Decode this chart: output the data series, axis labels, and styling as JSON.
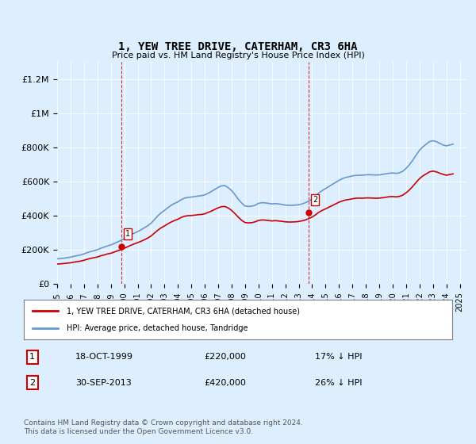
{
  "title": "1, YEW TREE DRIVE, CATERHAM, CR3 6HA",
  "subtitle": "Price paid vs. HM Land Registry's House Price Index (HPI)",
  "ylabel": "",
  "xlim_left": 1995.0,
  "xlim_right": 2025.5,
  "ylim_bottom": 0,
  "ylim_top": 1300000,
  "yticks": [
    0,
    200000,
    400000,
    600000,
    800000,
    1000000,
    1200000
  ],
  "ytick_labels": [
    "£0",
    "£200K",
    "£400K",
    "£600K",
    "£800K",
    "£1M",
    "£1.2M"
  ],
  "xticks": [
    1995,
    1996,
    1997,
    1998,
    1999,
    2000,
    2001,
    2002,
    2003,
    2004,
    2005,
    2006,
    2007,
    2008,
    2009,
    2010,
    2011,
    2012,
    2013,
    2014,
    2015,
    2016,
    2017,
    2018,
    2019,
    2020,
    2021,
    2022,
    2023,
    2024,
    2025
  ],
  "sale1_x": 1999.8,
  "sale1_y": 220000,
  "sale1_label": "1",
  "sale2_x": 2013.75,
  "sale2_y": 420000,
  "sale2_label": "2",
  "vline1_x": 1999.8,
  "vline2_x": 2013.75,
  "line_color_red": "#cc0000",
  "line_color_blue": "#6699cc",
  "vline_color": "#cc0000",
  "background_color": "#ddeeff",
  "plot_bg_color": "#ddeeff",
  "legend_label_red": "1, YEW TREE DRIVE, CATERHAM, CR3 6HA (detached house)",
  "legend_label_blue": "HPI: Average price, detached house, Tandridge",
  "annotation1_date": "18-OCT-1999",
  "annotation1_price": "£220,000",
  "annotation1_hpi": "17% ↓ HPI",
  "annotation2_date": "30-SEP-2013",
  "annotation2_price": "£420,000",
  "annotation2_hpi": "26% ↓ HPI",
  "footer": "Contains HM Land Registry data © Crown copyright and database right 2024.\nThis data is licensed under the Open Government Licence v3.0.",
  "hpi_data_x": [
    1995.0,
    1995.25,
    1995.5,
    1995.75,
    1996.0,
    1996.25,
    1996.5,
    1996.75,
    1997.0,
    1997.25,
    1997.5,
    1997.75,
    1998.0,
    1998.25,
    1998.5,
    1998.75,
    1999.0,
    1999.25,
    1999.5,
    1999.75,
    2000.0,
    2000.25,
    2000.5,
    2000.75,
    2001.0,
    2001.25,
    2001.5,
    2001.75,
    2002.0,
    2002.25,
    2002.5,
    2002.75,
    2003.0,
    2003.25,
    2003.5,
    2003.75,
    2004.0,
    2004.25,
    2004.5,
    2004.75,
    2005.0,
    2005.25,
    2005.5,
    2005.75,
    2006.0,
    2006.25,
    2006.5,
    2006.75,
    2007.0,
    2007.25,
    2007.5,
    2007.75,
    2008.0,
    2008.25,
    2008.5,
    2008.75,
    2009.0,
    2009.25,
    2009.5,
    2009.75,
    2010.0,
    2010.25,
    2010.5,
    2010.75,
    2011.0,
    2011.25,
    2011.5,
    2011.75,
    2012.0,
    2012.25,
    2012.5,
    2012.75,
    2013.0,
    2013.25,
    2013.5,
    2013.75,
    2014.0,
    2014.25,
    2014.5,
    2014.75,
    2015.0,
    2015.25,
    2015.5,
    2015.75,
    2016.0,
    2016.25,
    2016.5,
    2016.75,
    2017.0,
    2017.25,
    2017.5,
    2017.75,
    2018.0,
    2018.25,
    2018.5,
    2018.75,
    2019.0,
    2019.25,
    2019.5,
    2019.75,
    2020.0,
    2020.25,
    2020.5,
    2020.75,
    2021.0,
    2021.25,
    2021.5,
    2021.75,
    2022.0,
    2022.25,
    2022.5,
    2022.75,
    2023.0,
    2023.25,
    2023.5,
    2023.75,
    2024.0,
    2024.25,
    2024.5
  ],
  "hpi_data_y": [
    148000,
    150000,
    152000,
    155000,
    158000,
    163000,
    167000,
    171000,
    177000,
    185000,
    191000,
    196000,
    202000,
    210000,
    217000,
    224000,
    230000,
    238000,
    247000,
    256000,
    266000,
    277000,
    289000,
    299000,
    308000,
    318000,
    330000,
    342000,
    357000,
    378000,
    400000,
    418000,
    432000,
    448000,
    462000,
    473000,
    482000,
    495000,
    504000,
    508000,
    510000,
    513000,
    516000,
    518000,
    523000,
    532000,
    543000,
    555000,
    567000,
    576000,
    577000,
    565000,
    548000,
    524000,
    497000,
    475000,
    458000,
    455000,
    457000,
    462000,
    473000,
    477000,
    476000,
    473000,
    470000,
    472000,
    470000,
    467000,
    463000,
    462000,
    462000,
    463000,
    465000,
    470000,
    477000,
    487000,
    498000,
    515000,
    534000,
    548000,
    560000,
    572000,
    584000,
    596000,
    608000,
    618000,
    625000,
    629000,
    634000,
    637000,
    638000,
    638000,
    640000,
    641000,
    640000,
    639000,
    640000,
    643000,
    646000,
    650000,
    651000,
    649000,
    652000,
    661000,
    678000,
    700000,
    726000,
    756000,
    784000,
    804000,
    820000,
    835000,
    840000,
    835000,
    825000,
    815000,
    810000,
    815000,
    820000
  ],
  "price_data_x": [
    1995.0,
    1995.25,
    1995.5,
    1995.75,
    1996.0,
    1996.25,
    1996.5,
    1996.75,
    1997.0,
    1997.25,
    1997.5,
    1997.75,
    1998.0,
    1998.25,
    1998.5,
    1998.75,
    1999.0,
    1999.25,
    1999.5,
    1999.75,
    2000.0,
    2000.25,
    2000.5,
    2000.75,
    2001.0,
    2001.25,
    2001.5,
    2001.75,
    2002.0,
    2002.25,
    2002.5,
    2002.75,
    2003.0,
    2003.25,
    2003.5,
    2003.75,
    2004.0,
    2004.25,
    2004.5,
    2004.75,
    2005.0,
    2005.25,
    2005.5,
    2005.75,
    2006.0,
    2006.25,
    2006.5,
    2006.75,
    2007.0,
    2007.25,
    2007.5,
    2007.75,
    2008.0,
    2008.25,
    2008.5,
    2008.75,
    2009.0,
    2009.25,
    2009.5,
    2009.75,
    2010.0,
    2010.25,
    2010.5,
    2010.75,
    2011.0,
    2011.25,
    2011.5,
    2011.75,
    2012.0,
    2012.25,
    2012.5,
    2012.75,
    2013.0,
    2013.25,
    2013.5,
    2013.75,
    2014.0,
    2014.25,
    2014.5,
    2014.75,
    2015.0,
    2015.25,
    2015.5,
    2015.75,
    2016.0,
    2016.25,
    2016.5,
    2016.75,
    2017.0,
    2017.25,
    2017.5,
    2017.75,
    2018.0,
    2018.25,
    2018.5,
    2018.75,
    2019.0,
    2019.25,
    2019.5,
    2019.75,
    2020.0,
    2020.25,
    2020.5,
    2020.75,
    2021.0,
    2021.25,
    2021.5,
    2021.75,
    2022.0,
    2022.25,
    2022.5,
    2022.75,
    2023.0,
    2023.25,
    2023.5,
    2023.75,
    2024.0,
    2024.25,
    2024.5
  ],
  "price_data_y": [
    118000,
    119000,
    121000,
    123000,
    125000,
    129000,
    132000,
    135000,
    140000,
    146000,
    151000,
    155000,
    159000,
    166000,
    171000,
    177000,
    181000,
    188000,
    195000,
    202000,
    210000,
    219000,
    228000,
    236000,
    243000,
    251000,
    260000,
    270000,
    282000,
    299000,
    316000,
    330000,
    341000,
    353000,
    364000,
    373000,
    380000,
    391000,
    398000,
    401000,
    402000,
    404000,
    407000,
    408000,
    412000,
    420000,
    428000,
    438000,
    447000,
    454000,
    455000,
    446000,
    432000,
    413000,
    392000,
    374000,
    361000,
    359000,
    360000,
    365000,
    373000,
    376000,
    375000,
    373000,
    370000,
    372000,
    370000,
    368000,
    365000,
    364000,
    364000,
    365000,
    367000,
    371000,
    376000,
    384000,
    393000,
    406000,
    421000,
    432000,
    441000,
    451000,
    460000,
    470000,
    480000,
    487000,
    493000,
    496000,
    500000,
    503000,
    504000,
    503000,
    505000,
    505000,
    504000,
    503000,
    504000,
    506000,
    509000,
    512000,
    513000,
    511000,
    514000,
    521000,
    535000,
    552000,
    573000,
    596000,
    618000,
    634000,
    646000,
    658000,
    662000,
    658000,
    650000,
    643000,
    638000,
    642000,
    646000
  ]
}
